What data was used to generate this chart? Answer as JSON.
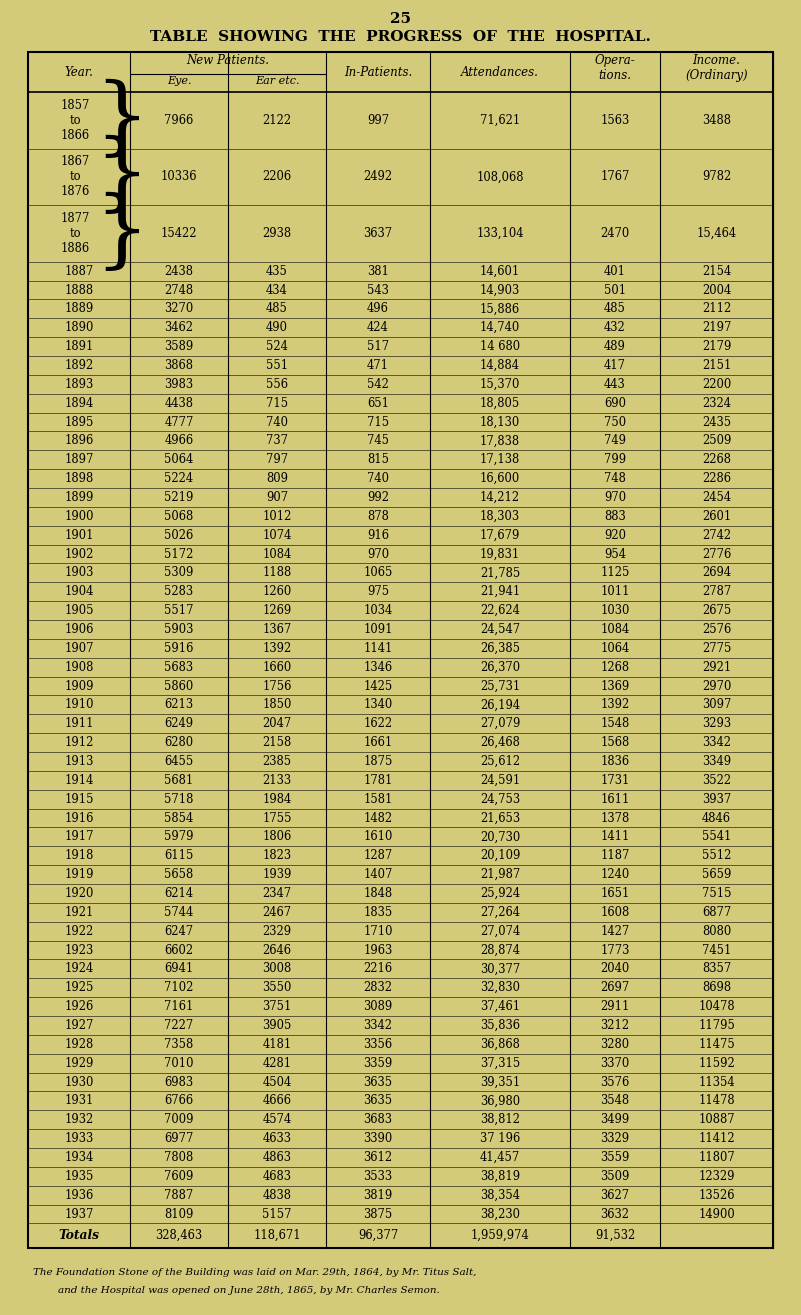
{
  "page_number": "25",
  "title": "TABLE  SHOWING  THE  PROGRESS  OF  THE  HOSPITAL.",
  "bg_color": "#d4cb7a",
  "rows": [
    [
      "1857\nto\n1866",
      "7966",
      "2122",
      "997",
      "71,621",
      "1563",
      "3488"
    ],
    [
      "1867\nto\n1876",
      "10336",
      "2206",
      "2492",
      "108,068",
      "1767",
      "9782"
    ],
    [
      "1877\nto\n1886",
      "15422",
      "2938",
      "3637",
      "133,104",
      "2470",
      "15,464"
    ],
    [
      "1887",
      "2438",
      "435",
      "381",
      "14,601",
      "401",
      "2154"
    ],
    [
      "1888",
      "2748",
      "434",
      "543",
      "14,903",
      "501",
      "2004"
    ],
    [
      "1889",
      "3270",
      "485",
      "496",
      "15,886",
      "485",
      "2112"
    ],
    [
      "1890",
      "3462",
      "490",
      "424",
      "14,740",
      "432",
      "2197"
    ],
    [
      "1891",
      "3589",
      "524",
      "517",
      "14 680",
      "489",
      "2179"
    ],
    [
      "1892",
      "3868",
      "551",
      "471",
      "14,884",
      "417",
      "2151"
    ],
    [
      "1893",
      "3983",
      "556",
      "542",
      "15,370",
      "443",
      "2200"
    ],
    [
      "1894",
      "4438",
      "715",
      "651",
      "18,805",
      "690",
      "2324"
    ],
    [
      "1895",
      "4777",
      "740",
      "715",
      "18,130",
      "750",
      "2435"
    ],
    [
      "1896",
      "4966",
      "737",
      "745",
      "17,838",
      "749",
      "2509"
    ],
    [
      "1897",
      "5064",
      "797",
      "815",
      "17,138",
      "799",
      "2268"
    ],
    [
      "1898",
      "5224",
      "809",
      "740",
      "16,600",
      "748",
      "2286"
    ],
    [
      "1899",
      "5219",
      "907",
      "992",
      "14,212",
      "970",
      "2454"
    ],
    [
      "1900",
      "5068",
      "1012",
      "878",
      "18,303",
      "883",
      "2601"
    ],
    [
      "1901",
      "5026",
      "1074",
      "916",
      "17,679",
      "920",
      "2742"
    ],
    [
      "1902",
      "5172",
      "1084",
      "970",
      "19,831",
      "954",
      "2776"
    ],
    [
      "1903",
      "5309",
      "1188",
      "1065",
      "21,785",
      "1125",
      "2694"
    ],
    [
      "1904",
      "5283",
      "1260",
      "975",
      "21,941",
      "1011",
      "2787"
    ],
    [
      "1905",
      "5517",
      "1269",
      "1034",
      "22,624",
      "1030",
      "2675"
    ],
    [
      "1906",
      "5903",
      "1367",
      "1091",
      "24,547",
      "1084",
      "2576"
    ],
    [
      "1907",
      "5916",
      "1392",
      "1141",
      "26,385",
      "1064",
      "2775"
    ],
    [
      "1908",
      "5683",
      "1660",
      "1346",
      "26,370",
      "1268",
      "2921"
    ],
    [
      "1909",
      "5860",
      "1756",
      "1425",
      "25,731",
      "1369",
      "2970"
    ],
    [
      "1910",
      "6213",
      "1850",
      "1340",
      "26,194",
      "1392",
      "3097"
    ],
    [
      "1911",
      "6249",
      "2047",
      "1622",
      "27,079",
      "1548",
      "3293"
    ],
    [
      "1912",
      "6280",
      "2158",
      "1661",
      "26,468",
      "1568",
      "3342"
    ],
    [
      "1913",
      "6455",
      "2385",
      "1875",
      "25,612",
      "1836",
      "3349"
    ],
    [
      "1914",
      "5681",
      "2133",
      "1781",
      "24,591",
      "1731",
      "3522"
    ],
    [
      "1915",
      "5718",
      "1984",
      "1581",
      "24,753",
      "1611",
      "3937"
    ],
    [
      "1916",
      "5854",
      "1755",
      "1482",
      "21,653",
      "1378",
      "4846"
    ],
    [
      "1917",
      "5979",
      "1806",
      "1610",
      "20,730",
      "1411",
      "5541"
    ],
    [
      "1918",
      "6115",
      "1823",
      "1287",
      "20,109",
      "1187",
      "5512"
    ],
    [
      "1919",
      "5658",
      "1939",
      "1407",
      "21,987",
      "1240",
      "5659"
    ],
    [
      "1920",
      "6214",
      "2347",
      "1848",
      "25,924",
      "1651",
      "7515"
    ],
    [
      "1921",
      "5744",
      "2467",
      "1835",
      "27,264",
      "1608",
      "6877"
    ],
    [
      "1922",
      "6247",
      "2329",
      "1710",
      "27,074",
      "1427",
      "8080"
    ],
    [
      "1923",
      "6602",
      "2646",
      "1963",
      "28,874",
      "1773",
      "7451"
    ],
    [
      "1924",
      "6941",
      "3008",
      "2216",
      "30,377",
      "2040",
      "8357"
    ],
    [
      "1925",
      "7102",
      "3550",
      "2832",
      "32,830",
      "2697",
      "8698"
    ],
    [
      "1926",
      "7161",
      "3751",
      "3089",
      "37,461",
      "2911",
      "10478"
    ],
    [
      "1927",
      "7227",
      "3905",
      "3342",
      "35,836",
      "3212",
      "11795"
    ],
    [
      "1928",
      "7358",
      "4181",
      "3356",
      "36,868",
      "3280",
      "11475"
    ],
    [
      "1929",
      "7010",
      "4281",
      "3359",
      "37,315",
      "3370",
      "11592"
    ],
    [
      "1930",
      "6983",
      "4504",
      "3635",
      "39,351",
      "3576",
      "11354"
    ],
    [
      "1931",
      "6766",
      "4666",
      "3635",
      "36,980",
      "3548",
      "11478"
    ],
    [
      "1932",
      "7009",
      "4574",
      "3683",
      "38,812",
      "3499",
      "10887"
    ],
    [
      "1933",
      "6977",
      "4633",
      "3390",
      "37 196",
      "3329",
      "11412"
    ],
    [
      "1934",
      "7808",
      "4863",
      "3612",
      "41,457",
      "3559",
      "11807"
    ],
    [
      "1935",
      "7609",
      "4683",
      "3533",
      "38,819",
      "3509",
      "12329"
    ],
    [
      "1936",
      "7887",
      "4838",
      "3819",
      "38,354",
      "3627",
      "13526"
    ],
    [
      "1937",
      "8109",
      "5157",
      "3875",
      "38,230",
      "3632",
      "14900"
    ]
  ],
  "totals_row": [
    "Totals",
    "328,463",
    "118,671",
    "96,377",
    "1,959,974",
    "91,532",
    ""
  ],
  "footnote_line1": "The Foundation Stone of the Building was laid on Mar. 29th, 1864, by Mr. Titus Salt,",
  "footnote_line2": "and the Hospital was opened on June 28th, 1865, by Mr. Charles Semon."
}
